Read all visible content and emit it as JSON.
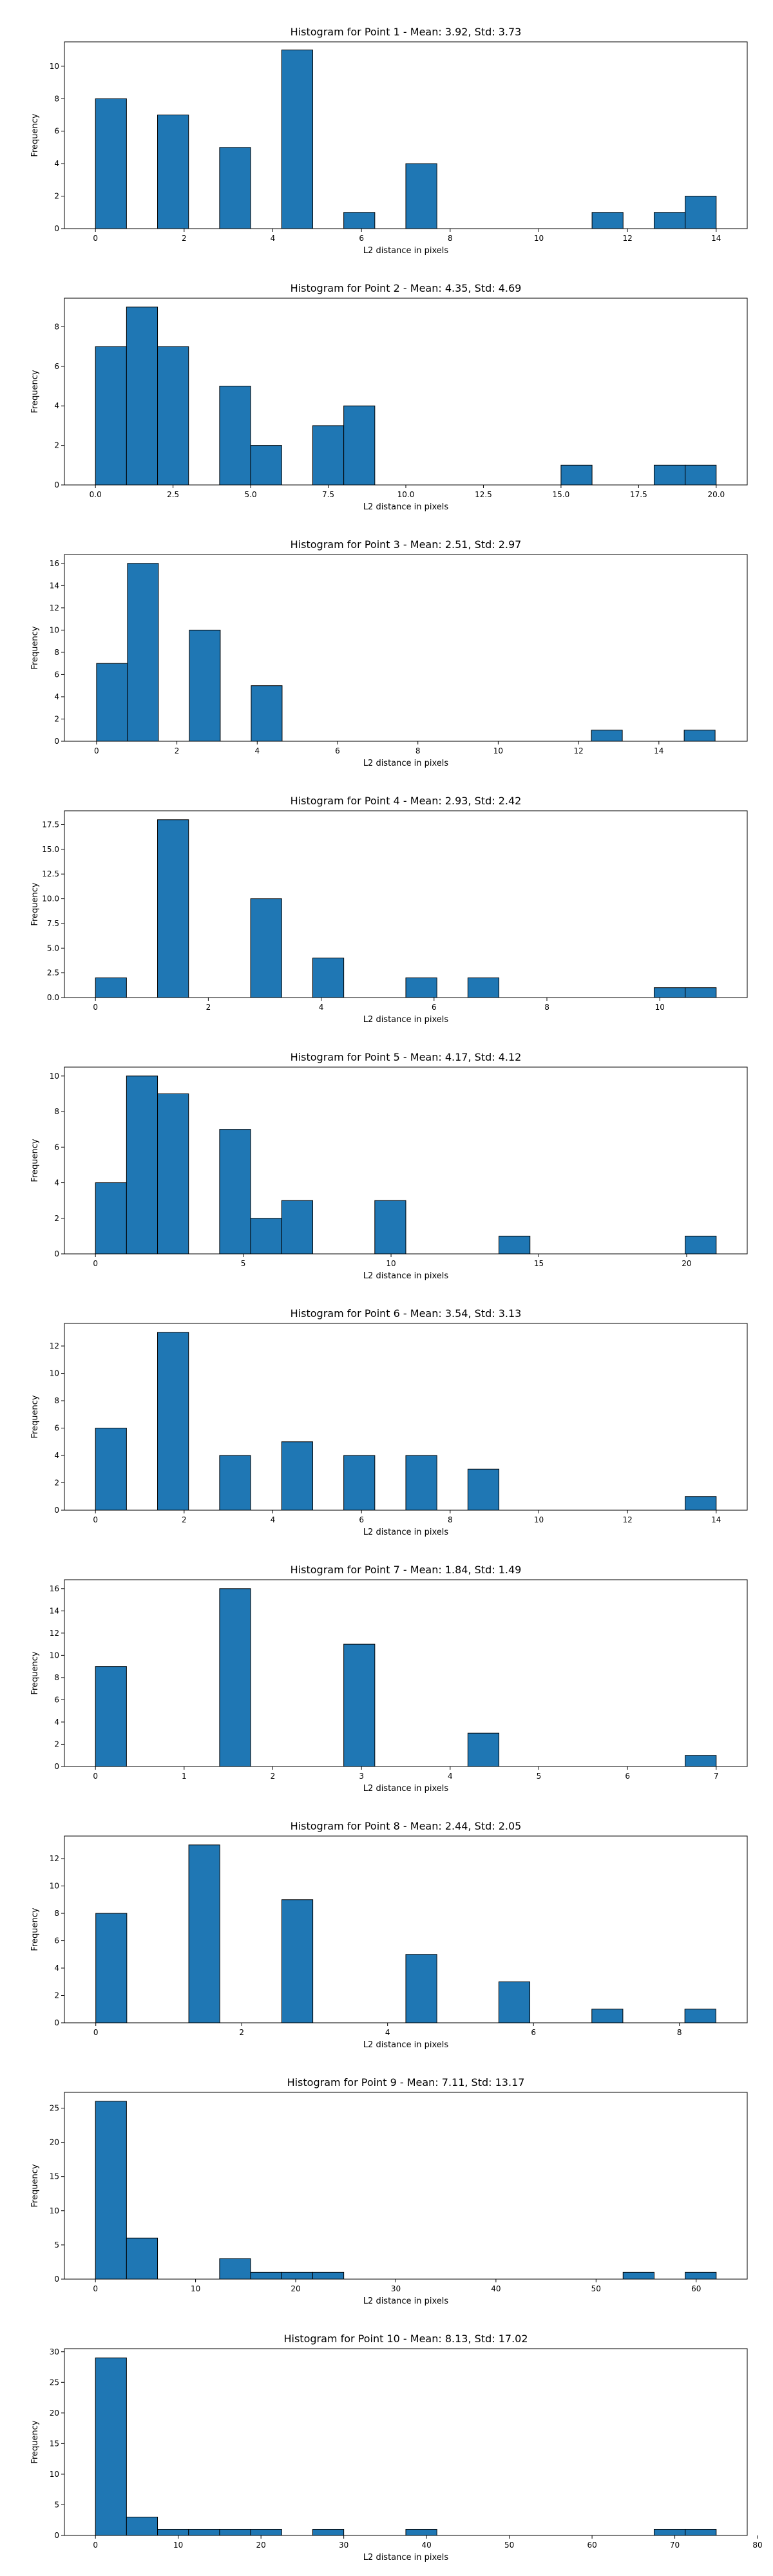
{
  "colors": {
    "bar_fill": "#1f77b4",
    "bar_edge": "#000000"
  },
  "chart_data": [
    {
      "type": "bar",
      "title": "Histogram for Point 1 - Mean: 3.92, Std: 3.73",
      "xlabel": "L2 distance in pixels",
      "ylabel": "Frequency",
      "xlim": [
        -0.7,
        14.7
      ],
      "ylim": [
        0,
        11.5
      ],
      "xticks": [
        0,
        2,
        4,
        6,
        8,
        10,
        12,
        14
      ],
      "yticks": [
        0,
        2,
        4,
        6,
        8,
        10
      ],
      "bin_edges": [
        0,
        0.7,
        1.4,
        2.1,
        2.8,
        3.5,
        4.2,
        4.9,
        5.6,
        6.3,
        7.0,
        7.7,
        8.4,
        9.1,
        9.8,
        10.5,
        11.2,
        11.9,
        12.6,
        13.3,
        14.0
      ],
      "values": [
        8,
        0,
        7,
        0,
        5,
        0,
        11,
        0,
        1,
        0,
        4,
        0,
        0,
        0,
        0,
        0,
        1,
        0,
        1,
        2
      ]
    },
    {
      "type": "bar",
      "title": "Histogram for Point 2 - Mean: 4.35, Std: 4.69",
      "xlabel": "L2 distance in pixels",
      "ylabel": "Frequency",
      "xlim": [
        -1.0,
        21.0
      ],
      "ylim": [
        0,
        9.45
      ],
      "xticks": [
        0.0,
        2.5,
        5.0,
        7.5,
        10.0,
        12.5,
        15.0,
        17.5,
        20.0
      ],
      "yticks": [
        0,
        2,
        4,
        6,
        8
      ],
      "bin_edges": [
        0,
        1,
        2,
        3,
        4,
        5,
        6,
        7,
        8,
        9,
        10,
        11,
        12,
        13,
        14,
        15,
        16,
        17,
        18,
        19,
        20
      ],
      "values": [
        7,
        9,
        7,
        0,
        5,
        2,
        0,
        3,
        4,
        0,
        0,
        0,
        0,
        0,
        0,
        1,
        0,
        0,
        1,
        1
      ]
    },
    {
      "type": "bar",
      "title": "Histogram for Point 3 - Mean: 2.51, Std: 2.97",
      "xlabel": "L2 distance in pixels",
      "ylabel": "Frequency",
      "xlim": [
        -0.8,
        16.2
      ],
      "ylim": [
        0,
        16.8
      ],
      "xticks": [
        0,
        2,
        4,
        6,
        8,
        10,
        12,
        14
      ],
      "yticks": [
        0,
        2,
        4,
        6,
        8,
        10,
        12,
        14,
        16
      ],
      "bin_edges": [
        0,
        0.77,
        1.54,
        2.31,
        3.08,
        3.85,
        4.62,
        5.39,
        6.16,
        6.93,
        7.7,
        8.47,
        9.24,
        10.01,
        10.78,
        11.55,
        12.32,
        13.09,
        13.86,
        14.63,
        15.4
      ],
      "values": [
        7,
        16,
        0,
        10,
        0,
        5,
        0,
        0,
        0,
        0,
        0,
        0,
        0,
        0,
        0,
        0,
        1,
        0,
        0,
        1
      ]
    },
    {
      "type": "bar",
      "title": "Histogram for Point 4 - Mean: 2.93, Std: 2.42",
      "xlabel": "L2 distance in pixels",
      "ylabel": "Frequency",
      "xlim": [
        -0.55,
        11.55
      ],
      "ylim": [
        0,
        18.9
      ],
      "xticks": [
        0,
        2,
        4,
        6,
        8,
        10
      ],
      "yticks": [
        0.0,
        2.5,
        5.0,
        7.5,
        10.0,
        12.5,
        15.0,
        17.5
      ],
      "bin_edges": [
        0,
        0.55,
        1.1,
        1.65,
        2.2,
        2.75,
        3.3,
        3.85,
        4.4,
        4.95,
        5.5,
        6.05,
        6.6,
        7.15,
        7.7,
        8.25,
        8.8,
        9.35,
        9.9,
        10.45,
        11.0
      ],
      "values": [
        2,
        0,
        18,
        0,
        0,
        10,
        0,
        4,
        0,
        0,
        2,
        0,
        2,
        0,
        0,
        0,
        0,
        0,
        1,
        1
      ]
    },
    {
      "type": "bar",
      "title": "Histogram for Point 5 - Mean: 4.17, Std: 4.12",
      "xlabel": "L2 distance in pixels",
      "ylabel": "Frequency",
      "xlim": [
        -1.05,
        22.05
      ],
      "ylim": [
        0,
        10.5
      ],
      "xticks": [
        0,
        5,
        10,
        15,
        20
      ],
      "yticks": [
        0,
        2,
        4,
        6,
        8,
        10
      ],
      "bin_edges": [
        0,
        1.05,
        2.1,
        3.15,
        4.2,
        5.25,
        6.3,
        7.35,
        8.4,
        9.45,
        10.5,
        11.55,
        12.6,
        13.65,
        14.7,
        15.75,
        16.8,
        17.85,
        18.9,
        19.95,
        21.0
      ],
      "values": [
        4,
        10,
        9,
        0,
        7,
        2,
        3,
        0,
        0,
        3,
        0,
        0,
        0,
        1,
        0,
        0,
        0,
        0,
        0,
        1
      ]
    },
    {
      "type": "bar",
      "title": "Histogram for Point 6 - Mean: 3.54, Std: 3.13",
      "xlabel": "L2 distance in pixels",
      "ylabel": "Frequency",
      "xlim": [
        -0.7,
        14.7
      ],
      "ylim": [
        0,
        13.65
      ],
      "xticks": [
        0,
        2,
        4,
        6,
        8,
        10,
        12,
        14
      ],
      "yticks": [
        0,
        2,
        4,
        6,
        8,
        10,
        12
      ],
      "bin_edges": [
        0,
        0.7,
        1.4,
        2.1,
        2.8,
        3.5,
        4.2,
        4.9,
        5.6,
        6.3,
        7.0,
        7.7,
        8.4,
        9.1,
        9.8,
        10.5,
        11.2,
        11.9,
        12.6,
        13.3,
        14.0
      ],
      "values": [
        6,
        0,
        13,
        0,
        4,
        0,
        5,
        0,
        4,
        0,
        4,
        0,
        3,
        0,
        0,
        0,
        0,
        0,
        0,
        1
      ]
    },
    {
      "type": "bar",
      "title": "Histogram for Point 7 - Mean: 1.84, Std: 1.49",
      "xlabel": "L2 distance in pixels",
      "ylabel": "Frequency",
      "xlim": [
        -0.35,
        7.35
      ],
      "ylim": [
        0,
        16.8
      ],
      "xticks": [
        0,
        1,
        2,
        3,
        4,
        5,
        6,
        7
      ],
      "yticks": [
        0,
        2,
        4,
        6,
        8,
        10,
        12,
        14,
        16
      ],
      "bin_edges": [
        0,
        0.35,
        0.7,
        1.05,
        1.4,
        1.75,
        2.1,
        2.45,
        2.8,
        3.15,
        3.5,
        3.85,
        4.2,
        4.55,
        4.9,
        5.25,
        5.6,
        5.95,
        6.3,
        6.65,
        7.0
      ],
      "values": [
        9,
        0,
        0,
        0,
        16,
        0,
        0,
        0,
        11,
        0,
        0,
        0,
        3,
        0,
        0,
        0,
        0,
        0,
        0,
        1
      ]
    },
    {
      "type": "bar",
      "title": "Histogram for Point 8 - Mean: 2.44, Std: 2.05",
      "xlabel": "L2 distance in pixels",
      "ylabel": "Frequency",
      "xlim": [
        -0.43,
        8.93
      ],
      "ylim": [
        0,
        13.65
      ],
      "xticks": [
        0,
        2,
        4,
        6,
        8
      ],
      "yticks": [
        0,
        2,
        4,
        6,
        8,
        10,
        12
      ],
      "bin_edges": [
        0,
        0.425,
        0.85,
        1.275,
        1.7,
        2.125,
        2.55,
        2.975,
        3.4,
        3.825,
        4.25,
        4.675,
        5.1,
        5.525,
        5.95,
        6.375,
        6.8,
        7.225,
        7.65,
        8.075,
        8.5
      ],
      "values": [
        8,
        0,
        0,
        13,
        0,
        0,
        9,
        0,
        0,
        0,
        5,
        0,
        0,
        3,
        0,
        0,
        1,
        0,
        0,
        1
      ]
    },
    {
      "type": "bar",
      "title": "Histogram for Point 9 - Mean: 7.11, Std: 13.17",
      "xlabel": "L2 distance in pixels",
      "ylabel": "Frequency",
      "xlim": [
        -3.1,
        65.1
      ],
      "ylim": [
        0,
        27.3
      ],
      "xticks": [
        0,
        10,
        20,
        30,
        40,
        50,
        60
      ],
      "yticks": [
        0,
        5,
        10,
        15,
        20,
        25
      ],
      "bin_edges": [
        0,
        3.1,
        6.2,
        9.3,
        12.4,
        15.5,
        18.6,
        21.7,
        24.8,
        27.9,
        31.0,
        34.1,
        37.2,
        40.3,
        43.4,
        46.5,
        49.6,
        52.7,
        55.8,
        58.9,
        62.0
      ],
      "values": [
        26,
        6,
        0,
        0,
        3,
        1,
        1,
        1,
        0,
        0,
        0,
        0,
        0,
        0,
        0,
        0,
        0,
        1,
        0,
        1
      ]
    },
    {
      "type": "bar",
      "title": "Histogram for Point 10 - Mean: 8.13, Std: 17.02",
      "xlabel": "L2 distance in pixels",
      "ylabel": "Frequency",
      "xlim": [
        -3.75,
        78.75
      ],
      "ylim": [
        0,
        30.5
      ],
      "xticks": [
        0,
        10,
        20,
        30,
        40,
        50,
        60,
        70,
        80
      ],
      "yticks": [
        0,
        5,
        10,
        15,
        20,
        25,
        30
      ],
      "bin_edges": [
        0,
        3.75,
        7.5,
        11.25,
        15.0,
        18.75,
        22.5,
        26.25,
        30.0,
        33.75,
        37.5,
        41.25,
        45.0,
        48.75,
        52.5,
        56.25,
        60.0,
        63.75,
        67.5,
        71.25,
        75.0
      ],
      "values": [
        29,
        3,
        1,
        1,
        1,
        1,
        0,
        1,
        0,
        0,
        1,
        0,
        0,
        0,
        0,
        0,
        0,
        0,
        1,
        1
      ]
    }
  ]
}
